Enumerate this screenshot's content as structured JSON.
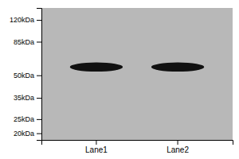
{
  "chart_data": {
    "type": "scatter",
    "marker": "ellipse",
    "categories": [
      "Lane1",
      "Lane2"
    ],
    "values": [
      57,
      57
    ],
    "color": "#111111",
    "log": "y",
    "ylim": [
      18,
      145
    ],
    "yticks": [
      {
        "value": 120,
        "label": "120kDa"
      },
      {
        "value": 85,
        "label": "85kDa"
      },
      {
        "value": 50,
        "label": "50kDa"
      },
      {
        "value": 35,
        "label": "35kDa"
      },
      {
        "value": 25,
        "label": "25kDa"
      },
      {
        "value": 20,
        "label": "20kDa"
      }
    ],
    "grid": false
  }
}
